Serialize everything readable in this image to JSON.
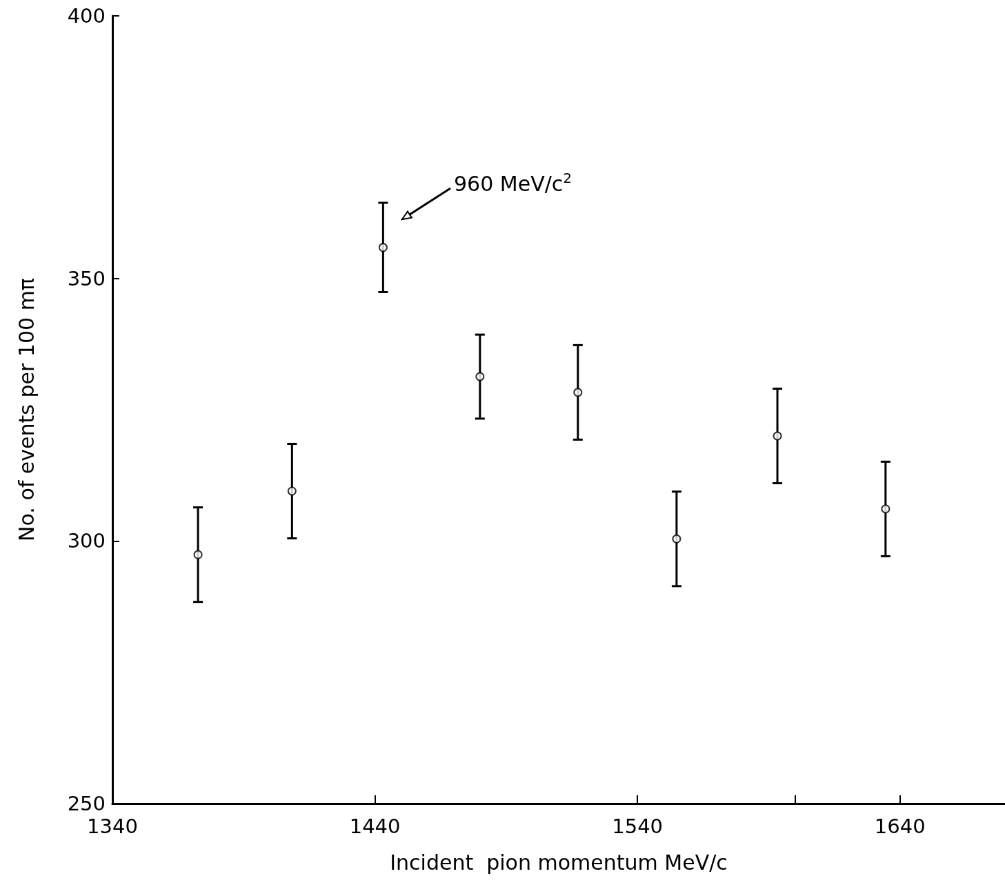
{
  "chart_data": {
    "type": "scatter",
    "xlabel": "Incident  pion momentum MeV/c",
    "ylabel": "No. of events per 100 mπ",
    "x": [
      1372.6,
      1408.4,
      1443.1,
      1480,
      1517.3,
      1554.9,
      1593.3,
      1634.5
    ],
    "values": [
      297.4,
      309.5,
      355.9,
      331.3,
      328.3,
      300.4,
      320,
      306.1
    ],
    "errors": [
      9,
      9,
      8.5,
      8,
      9,
      9,
      9,
      9
    ],
    "color": "#000000",
    "marker": "circle",
    "xlim": [
      1340,
      1680
    ],
    "xticks": [
      1340,
      1440,
      1540,
      {
        "value": 1600,
        "label": null
      },
      1640
    ],
    "ylim": [
      250,
      400
    ],
    "yticks": [
      250,
      300,
      350,
      400
    ],
    "annotations": [
      "960 MeV/c$^{2}$"
    ]
  }
}
